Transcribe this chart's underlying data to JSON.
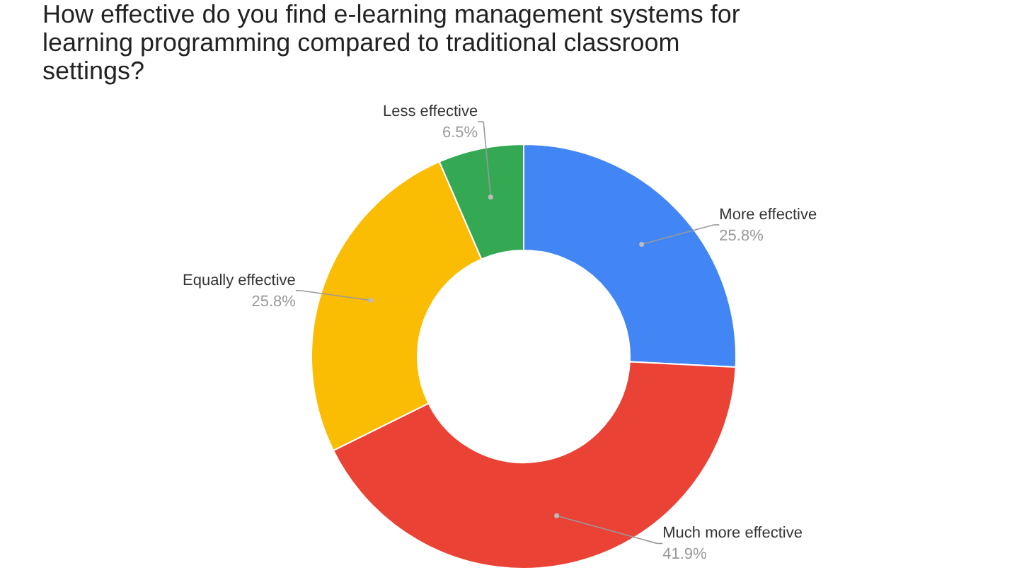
{
  "chart_data": {
    "type": "donut",
    "title": "How effective do you find e-learning management systems for learning programming compared to traditional classroom settings?",
    "categories": [
      "More effective",
      "Much more effective",
      "Equally effective",
      "Less effective"
    ],
    "values": [
      25.8,
      41.9,
      25.8,
      6.5
    ],
    "colors": [
      "#4285f4",
      "#ea4335",
      "#fbbc04",
      "#34a853"
    ],
    "value_labels": [
      "25.8%",
      "41.9%",
      "25.8%",
      "6.5%"
    ],
    "legend": false
  }
}
